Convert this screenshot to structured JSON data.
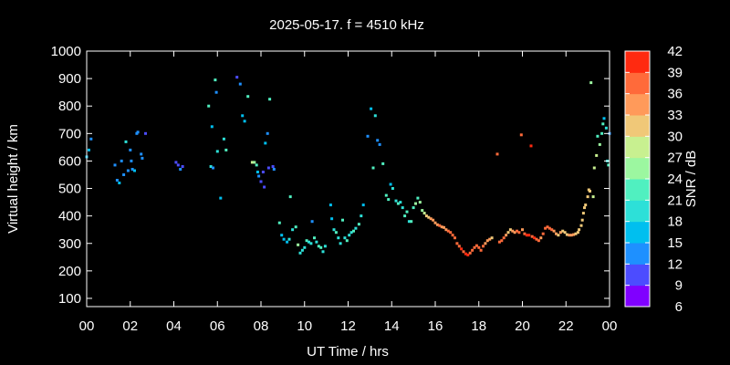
{
  "chart_data": {
    "type": "scatter",
    "title": "2025-05-17. f = 4510 kHz",
    "xlabel": "UT Time / hrs",
    "ylabel": "Virtual height / km",
    "xlim": [
      0,
      24
    ],
    "ylim": [
      70,
      1000
    ],
    "xticks": [
      "00",
      "02",
      "04",
      "06",
      "08",
      "10",
      "12",
      "14",
      "16",
      "18",
      "20",
      "22",
      "00"
    ],
    "yticks": [
      100,
      200,
      300,
      400,
      500,
      600,
      700,
      800,
      900,
      1000
    ],
    "grid": false,
    "colorbar": {
      "label": "SNR / dB",
      "ticks": [
        6,
        9,
        12,
        15,
        18,
        21,
        24,
        27,
        30,
        33,
        36,
        39,
        42
      ],
      "range": [
        6,
        42
      ],
      "colors": [
        "#8000ff",
        "#4c4cff",
        "#1e90ff",
        "#00bfef",
        "#2de0d8",
        "#50f0c0",
        "#9cf7a0",
        "#c8f090",
        "#f0c878",
        "#ff9a5a",
        "#ff6a3a",
        "#ff2a10"
      ]
    },
    "points": [
      [
        0.0,
        615,
        15
      ],
      [
        0.1,
        640,
        15
      ],
      [
        0.2,
        680,
        14
      ],
      [
        1.3,
        585,
        12
      ],
      [
        1.4,
        530,
        14
      ],
      [
        1.5,
        520,
        15
      ],
      [
        1.6,
        600,
        14
      ],
      [
        1.7,
        550,
        13
      ],
      [
        1.8,
        670,
        18
      ],
      [
        1.9,
        565,
        14
      ],
      [
        2.0,
        640,
        14
      ],
      [
        2.05,
        600,
        13
      ],
      [
        2.1,
        570,
        14
      ],
      [
        2.2,
        565,
        15
      ],
      [
        2.3,
        700,
        12
      ],
      [
        2.35,
        705,
        12
      ],
      [
        2.5,
        625,
        14
      ],
      [
        2.55,
        610,
        13
      ],
      [
        2.7,
        700,
        11
      ],
      [
        4.1,
        595,
        9
      ],
      [
        4.2,
        585,
        10
      ],
      [
        4.3,
        570,
        12
      ],
      [
        4.4,
        580,
        11
      ],
      [
        5.6,
        800,
        21
      ],
      [
        5.7,
        580,
        18
      ],
      [
        5.75,
        725,
        17
      ],
      [
        5.8,
        575,
        14
      ],
      [
        5.9,
        895,
        23
      ],
      [
        5.95,
        850,
        12
      ],
      [
        6.0,
        635,
        18
      ],
      [
        6.15,
        465,
        16
      ],
      [
        6.3,
        680,
        20
      ],
      [
        6.4,
        640,
        22
      ],
      [
        6.9,
        905,
        10
      ],
      [
        7.05,
        880,
        12
      ],
      [
        7.15,
        765,
        15
      ],
      [
        7.25,
        745,
        17
      ],
      [
        7.4,
        835,
        21
      ],
      [
        7.6,
        595,
        27
      ],
      [
        7.7,
        595,
        26
      ],
      [
        7.8,
        585,
        22
      ],
      [
        7.85,
        560,
        15
      ],
      [
        7.9,
        545,
        12
      ],
      [
        8.0,
        525,
        9
      ],
      [
        8.1,
        560,
        10
      ],
      [
        8.15,
        505,
        10
      ],
      [
        8.2,
        665,
        16
      ],
      [
        8.3,
        700,
        12
      ],
      [
        8.35,
        575,
        10
      ],
      [
        8.4,
        825,
        22
      ],
      [
        8.55,
        580,
        11
      ],
      [
        8.6,
        570,
        12
      ],
      [
        8.85,
        375,
        23
      ],
      [
        8.95,
        330,
        17
      ],
      [
        9.05,
        315,
        16
      ],
      [
        9.2,
        305,
        17
      ],
      [
        9.3,
        315,
        18
      ],
      [
        9.35,
        470,
        21
      ],
      [
        9.45,
        350,
        20
      ],
      [
        9.6,
        360,
        22
      ],
      [
        9.7,
        295,
        24
      ],
      [
        9.8,
        265,
        20
      ],
      [
        9.9,
        275,
        20
      ],
      [
        10.0,
        285,
        20
      ],
      [
        10.1,
        310,
        22
      ],
      [
        10.2,
        305,
        20
      ],
      [
        10.3,
        300,
        19
      ],
      [
        10.35,
        380,
        13
      ],
      [
        10.45,
        320,
        21
      ],
      [
        10.55,
        305,
        20
      ],
      [
        10.65,
        290,
        22
      ],
      [
        10.75,
        285,
        21
      ],
      [
        10.85,
        270,
        20
      ],
      [
        10.95,
        290,
        19
      ],
      [
        11.2,
        440,
        15
      ],
      [
        11.25,
        390,
        16
      ],
      [
        11.35,
        350,
        20
      ],
      [
        11.45,
        340,
        21
      ],
      [
        11.55,
        320,
        18
      ],
      [
        11.65,
        300,
        20
      ],
      [
        11.75,
        385,
        22
      ],
      [
        11.85,
        320,
        19
      ],
      [
        11.95,
        310,
        21
      ],
      [
        12.05,
        330,
        20
      ],
      [
        12.15,
        340,
        19
      ],
      [
        12.25,
        345,
        21
      ],
      [
        12.35,
        355,
        20
      ],
      [
        12.5,
        370,
        21
      ],
      [
        12.6,
        400,
        18
      ],
      [
        12.7,
        440,
        15
      ],
      [
        12.9,
        690,
        13
      ],
      [
        13.05,
        790,
        15
      ],
      [
        13.15,
        575,
        21
      ],
      [
        13.25,
        765,
        20
      ],
      [
        13.35,
        675,
        14
      ],
      [
        13.45,
        660,
        13
      ],
      [
        13.6,
        590,
        23
      ],
      [
        13.75,
        475,
        22
      ],
      [
        13.85,
        460,
        21
      ],
      [
        13.95,
        515,
        16
      ],
      [
        14.05,
        500,
        18
      ],
      [
        14.2,
        455,
        19
      ],
      [
        14.3,
        445,
        21
      ],
      [
        14.4,
        450,
        20
      ],
      [
        14.5,
        430,
        20
      ],
      [
        14.6,
        400,
        21
      ],
      [
        14.7,
        415,
        21
      ],
      [
        14.8,
        380,
        20
      ],
      [
        14.9,
        380,
        21
      ],
      [
        15.0,
        430,
        22
      ],
      [
        15.1,
        445,
        24
      ],
      [
        15.2,
        465,
        23
      ],
      [
        15.3,
        450,
        24
      ],
      [
        15.4,
        420,
        26
      ],
      [
        15.5,
        410,
        27
      ],
      [
        15.6,
        400,
        30
      ],
      [
        15.7,
        395,
        31
      ],
      [
        15.8,
        390,
        33
      ],
      [
        15.9,
        385,
        34
      ],
      [
        16.0,
        375,
        34
      ],
      [
        16.1,
        368,
        35
      ],
      [
        16.2,
        365,
        36
      ],
      [
        16.3,
        360,
        35
      ],
      [
        16.4,
        358,
        34
      ],
      [
        16.5,
        350,
        35
      ],
      [
        16.6,
        345,
        36
      ],
      [
        16.7,
        340,
        36
      ],
      [
        16.8,
        330,
        37
      ],
      [
        16.9,
        320,
        38
      ],
      [
        17.0,
        300,
        38
      ],
      [
        17.1,
        290,
        38
      ],
      [
        17.2,
        280,
        39
      ],
      [
        17.3,
        270,
        38
      ],
      [
        17.4,
        262,
        39
      ],
      [
        17.5,
        258,
        39
      ],
      [
        17.6,
        265,
        38
      ],
      [
        17.7,
        275,
        38
      ],
      [
        17.8,
        285,
        38
      ],
      [
        17.9,
        292,
        37
      ],
      [
        18.0,
        285,
        37
      ],
      [
        18.1,
        275,
        38
      ],
      [
        18.2,
        290,
        36
      ],
      [
        18.3,
        300,
        35
      ],
      [
        18.4,
        310,
        34
      ],
      [
        18.5,
        315,
        33
      ],
      [
        18.6,
        320,
        32
      ],
      [
        18.85,
        625,
        36
      ],
      [
        18.95,
        305,
        36
      ],
      [
        19.05,
        310,
        37
      ],
      [
        19.15,
        320,
        36
      ],
      [
        19.25,
        330,
        33
      ],
      [
        19.35,
        340,
        30
      ],
      [
        19.45,
        350,
        32
      ],
      [
        19.55,
        345,
        33
      ],
      [
        19.65,
        340,
        34
      ],
      [
        19.75,
        345,
        36
      ],
      [
        19.85,
        340,
        36
      ],
      [
        19.95,
        695,
        37
      ],
      [
        20.0,
        350,
        34
      ],
      [
        20.1,
        335,
        38
      ],
      [
        20.2,
        330,
        39
      ],
      [
        20.3,
        330,
        40
      ],
      [
        20.4,
        655,
        41
      ],
      [
        20.45,
        325,
        38
      ],
      [
        20.55,
        320,
        39
      ],
      [
        20.65,
        315,
        38
      ],
      [
        20.75,
        310,
        36
      ],
      [
        20.85,
        320,
        35
      ],
      [
        20.95,
        335,
        36
      ],
      [
        21.05,
        355,
        37
      ],
      [
        21.15,
        360,
        37
      ],
      [
        21.25,
        355,
        36
      ],
      [
        21.35,
        350,
        36
      ],
      [
        21.45,
        345,
        34
      ],
      [
        21.55,
        335,
        33
      ],
      [
        21.65,
        330,
        32
      ],
      [
        21.75,
        340,
        33
      ],
      [
        21.85,
        345,
        32
      ],
      [
        21.95,
        340,
        32
      ],
      [
        22.05,
        332,
        32
      ],
      [
        22.15,
        330,
        33
      ],
      [
        22.25,
        330,
        34
      ],
      [
        22.35,
        332,
        33
      ],
      [
        22.45,
        335,
        32
      ],
      [
        22.55,
        340,
        31
      ],
      [
        22.6,
        350,
        30
      ],
      [
        22.7,
        365,
        31
      ],
      [
        22.75,
        385,
        30
      ],
      [
        22.8,
        410,
        31
      ],
      [
        22.85,
        430,
        31
      ],
      [
        22.9,
        440,
        30
      ],
      [
        23.0,
        470,
        32
      ],
      [
        23.05,
        495,
        31
      ],
      [
        23.1,
        490,
        31
      ],
      [
        23.15,
        885,
        26
      ],
      [
        23.25,
        470,
        29
      ],
      [
        23.3,
        575,
        27
      ],
      [
        23.4,
        620,
        28
      ],
      [
        23.45,
        690,
        21
      ],
      [
        23.55,
        660,
        24
      ],
      [
        23.65,
        700,
        22
      ],
      [
        23.7,
        735,
        21
      ],
      [
        23.75,
        755,
        17
      ],
      [
        23.85,
        720,
        18
      ],
      [
        23.9,
        600,
        20
      ],
      [
        23.95,
        585,
        21
      ],
      [
        24.0,
        700,
        12
      ]
    ]
  }
}
